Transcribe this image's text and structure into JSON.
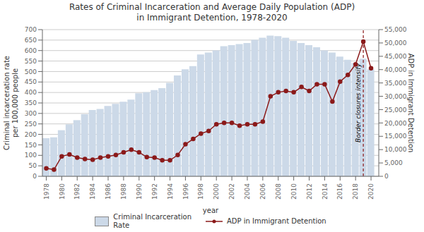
{
  "chart_data": {
    "type": "bar",
    "title": "Rates of Criminal Incarceration and Average Daily Population (ADP)\nin Immigrant Detention, 1978-2020",
    "x_label": "year",
    "y_label": "Criminal incarceration rate\nper 100,000 people",
    "y2_label": "ADP in Immigrant Detention",
    "x": [
      1978,
      1979,
      1980,
      1981,
      1982,
      1983,
      1984,
      1985,
      1986,
      1987,
      1988,
      1989,
      1990,
      1991,
      1992,
      1993,
      1994,
      1995,
      1996,
      1997,
      1998,
      1999,
      2000,
      2001,
      2002,
      2003,
      2004,
      2005,
      2006,
      2007,
      2008,
      2009,
      2010,
      2011,
      2012,
      2013,
      2014,
      2015,
      2016,
      2017,
      2018,
      2019,
      2020
    ],
    "xlim": [
      1977.5,
      2021
    ],
    "xticks": [
      1978,
      1980,
      1982,
      1984,
      1986,
      1988,
      1990,
      1992,
      1994,
      1996,
      1998,
      2000,
      2002,
      2004,
      2006,
      2008,
      2010,
      2012,
      2014,
      2016,
      2018,
      2020
    ],
    "ylim": [
      0,
      700
    ],
    "yticks": [
      0,
      50,
      100,
      150,
      200,
      250,
      300,
      350,
      400,
      450,
      500,
      550,
      600,
      650,
      700
    ],
    "y2lim": [
      0,
      55000
    ],
    "y2ticks": [
      0,
      {
        "value": 5000,
        "label": "5,000"
      },
      {
        "value": 10000,
        "label": "10,000"
      },
      {
        "value": 15000,
        "label": "15,000"
      },
      {
        "value": 20000,
        "label": "20,000"
      },
      {
        "value": 25000,
        "label": "25,000"
      },
      {
        "value": 30000,
        "label": "30,000"
      },
      {
        "value": 35000,
        "label": "35,000"
      },
      {
        "value": 40000,
        "label": "40,000"
      },
      {
        "value": 45000,
        "label": "45,000"
      },
      {
        "value": 50000,
        "label": "50,000"
      },
      {
        "value": 55000,
        "label": "55,000"
      }
    ],
    "grid": "y",
    "legend": "bottom",
    "series": [
      {
        "name": "Criminal Incarceration\nRate",
        "type": "bar",
        "color": "#ccd9e8",
        "values": [
          182,
          186,
          220,
          248,
          268,
          296,
          316,
          321,
          336,
          346,
          356,
          366,
          396,
          401,
          411,
          421,
          446,
          481,
          511,
          526,
          581,
          591,
          601,
          621,
          626,
          631,
          636,
          651,
          661,
          671,
          669,
          661,
          646,
          636,
          626,
          616,
          601,
          591,
          571,
          556,
          541,
          561,
          511
        ]
      },
      {
        "name": "ADP in Immigrant Detention",
        "type": "line",
        "axis": "y2",
        "color": "#8B1A1A",
        "marker": "circle",
        "values": [
          3000,
          2500,
          7500,
          8200,
          7000,
          6500,
          6200,
          7000,
          7500,
          8000,
          9000,
          10000,
          9000,
          7200,
          7000,
          6000,
          6000,
          8000,
          12000,
          14000,
          16000,
          17000,
          19500,
          20000,
          20000,
          19000,
          19500,
          19500,
          20500,
          30000,
          31500,
          32000,
          31500,
          33500,
          32000,
          34500,
          34500,
          28000,
          35500,
          38000,
          42000,
          50500,
          40500
        ]
      }
    ],
    "annotations": [
      {
        "text": "Border closures intensify",
        "x": 2019,
        "color": "#8B1A1A"
      }
    ]
  }
}
